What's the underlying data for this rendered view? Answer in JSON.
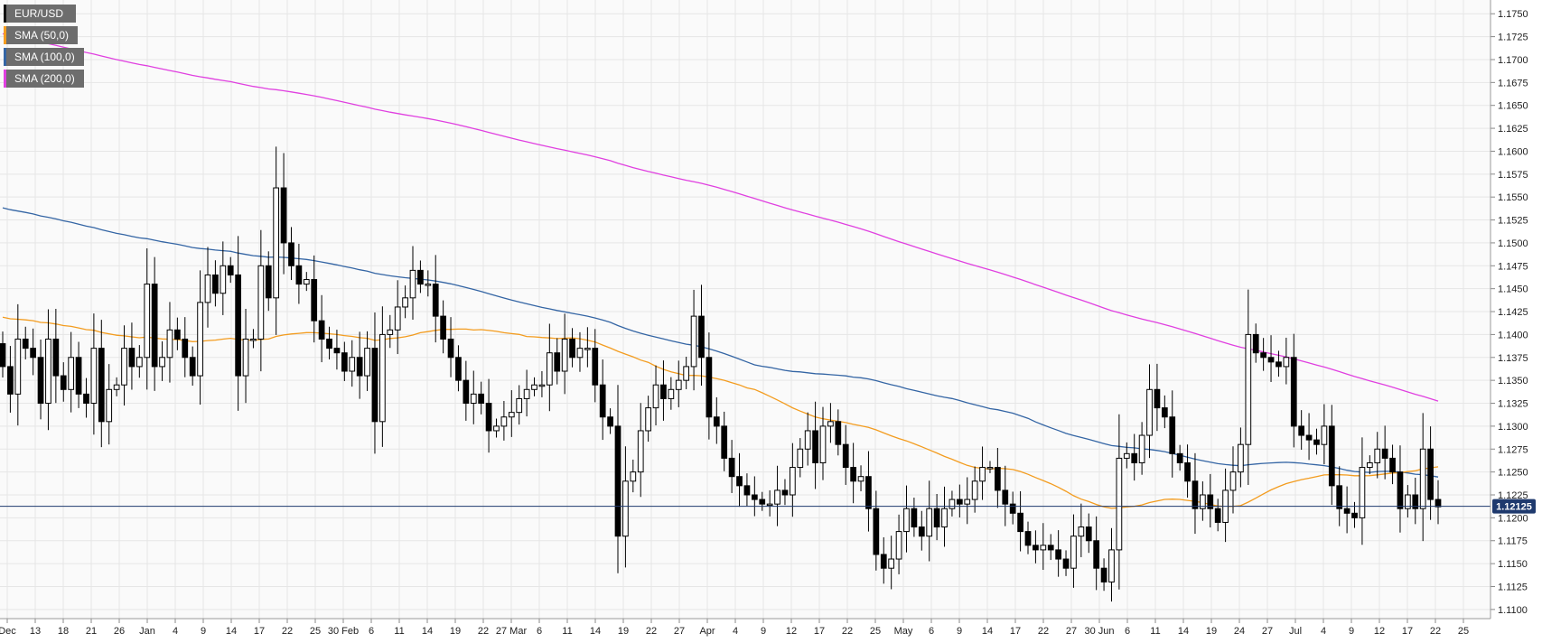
{
  "chart_data": {
    "type": "candlestick",
    "title": "",
    "instrument": "EUR/USD",
    "current_price": 1.12125,
    "current_price_label": "1.12125",
    "ylim": [
      1.109,
      1.1765
    ],
    "y_ticks": [
      "1.1750",
      "1.1725",
      "1.1700",
      "1.1675",
      "1.1650",
      "1.1625",
      "1.1600",
      "1.1575",
      "1.1550",
      "1.1525",
      "1.1500",
      "1.1475",
      "1.1450",
      "1.1425",
      "1.1400",
      "1.1375",
      "1.1350",
      "1.1325",
      "1.1300",
      "1.1275",
      "1.1250",
      "1.1225",
      "1.1200",
      "1.1175",
      "1.1150",
      "1.1125",
      "1.1100"
    ],
    "x_ticks": [
      "Dec",
      "13",
      "18",
      "21",
      "26",
      "Jan",
      "4",
      "9",
      "14",
      "17",
      "22",
      "25",
      "30 Feb",
      "6",
      "11",
      "14",
      "19",
      "22",
      "27 Mar",
      "6",
      "11",
      "14",
      "19",
      "22",
      "27",
      "Apr",
      "4",
      "9",
      "12",
      "17",
      "22",
      "25",
      "May",
      "6",
      "9",
      "14",
      "17",
      "22",
      "27",
      "30 Jun",
      "6",
      "11",
      "14",
      "19",
      "24",
      "27",
      "Jul",
      "4",
      "9",
      "12",
      "17",
      "22",
      "25"
    ],
    "grid": true,
    "legend": [
      {
        "label": "EUR/USD",
        "color": "#111111"
      },
      {
        "label": "SMA (50,0)",
        "color": "#f39c1f"
      },
      {
        "label": "SMA (100,0)",
        "color": "#3465a4"
      },
      {
        "label": "SMA (200,0)",
        "color": "#e040e0"
      }
    ],
    "colors": {
      "up_fill": "#ffffff",
      "down_fill": "#000000",
      "candle_stroke": "#000000",
      "grid": "#e6e6e6",
      "price_line": "#1f3a6e",
      "price_label_bg": "#1f3a6e"
    },
    "candle_closes": [
      1.1365,
      1.1335,
      1.1395,
      1.1385,
      1.1375,
      1.1325,
      1.1395,
      1.1355,
      1.134,
      1.1375,
      1.1335,
      1.1325,
      1.1385,
      1.1305,
      1.134,
      1.1345,
      1.1385,
      1.1365,
      1.1375,
      1.1455,
      1.1365,
      1.1375,
      1.1405,
      1.1395,
      1.1375,
      1.1355,
      1.1435,
      1.1465,
      1.1445,
      1.1475,
      1.1465,
      1.1355,
      1.1395,
      1.1395,
      1.1475,
      1.144,
      1.156,
      1.15,
      1.1475,
      1.1455,
      1.146,
      1.1415,
      1.1395,
      1.1385,
      1.138,
      1.136,
      1.1375,
      1.1355,
      1.1385,
      1.1305,
      1.14,
      1.1405,
      1.143,
      1.144,
      1.147,
      1.1455,
      1.1455,
      1.142,
      1.1395,
      1.1375,
      1.135,
      1.1325,
      1.1335,
      1.1325,
      1.1295,
      1.13,
      1.131,
      1.1315,
      1.133,
      1.134,
      1.1345,
      1.1345,
      1.138,
      1.136,
      1.1395,
      1.1375,
      1.1385,
      1.1385,
      1.1345,
      1.131,
      1.13,
      1.118,
      1.124,
      1.125,
      1.1295,
      1.132,
      1.1345,
      1.133,
      1.134,
      1.135,
      1.1365,
      1.142,
      1.1375,
      1.131,
      1.13,
      1.1265,
      1.1245,
      1.1235,
      1.1225,
      1.122,
      1.1215,
      1.1215,
      1.123,
      1.1225,
      1.1255,
      1.1275,
      1.1295,
      1.126,
      1.13,
      1.1305,
      1.128,
      1.1255,
      1.124,
      1.1245,
      1.121,
      1.116,
      1.1145,
      1.1155,
      1.1185,
      1.121,
      1.119,
      1.118,
      1.121,
      1.119,
      1.121,
      1.122,
      1.1215,
      1.122,
      1.124,
      1.1255,
      1.1255,
      1.123,
      1.1215,
      1.1205,
      1.1185,
      1.117,
      1.1165,
      1.117,
      1.1165,
      1.1155,
      1.1145,
      1.118,
      1.119,
      1.1175,
      1.1145,
      1.113,
      1.1165,
      1.1265,
      1.127,
      1.126,
      1.129,
      1.134,
      1.132,
      1.131,
      1.127,
      1.126,
      1.124,
      1.121,
      1.1225,
      1.121,
      1.1195,
      1.123,
      1.125,
      1.128,
      1.14,
      1.138,
      1.1375,
      1.137,
      1.1365,
      1.1375,
      1.13,
      1.129,
      1.1285,
      1.128,
      1.13,
      1.1235,
      1.121,
      1.1205,
      1.12,
      1.1255,
      1.126,
      1.1275,
      1.1265,
      1.125,
      1.121,
      1.1225,
      1.121,
      1.1275,
      1.122,
      1.1212
    ]
  }
}
